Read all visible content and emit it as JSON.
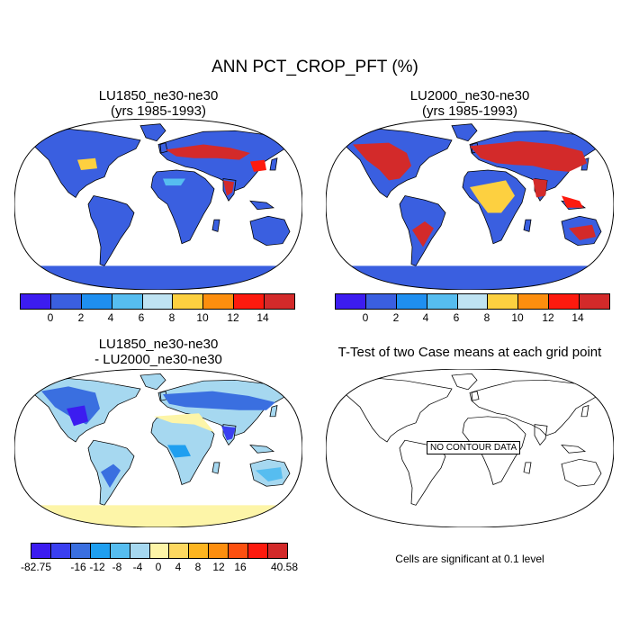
{
  "title": "ANN PCT_CROP_PFT (%)",
  "panels": {
    "top_left": {
      "title": "LU1850_ne30-ne30",
      "subtitle": "(yrs 1985-1993)"
    },
    "top_right": {
      "title": "LU2000_ne30-ne30",
      "subtitle": "(yrs 1985-1993)"
    },
    "bottom_left": {
      "title": "LU1850_ne30-ne30",
      "subtitle": "- LU2000_ne30-ne30"
    },
    "bottom_right": {
      "title": "T-Test of two Case means at each grid point",
      "no_data_label": "NO CONTOUR DATA",
      "note": "Cells are significant at 0.1 level"
    }
  },
  "colorbars": {
    "top": {
      "colors": [
        "#3c1cf0",
        "#3a5fe0",
        "#1f8ff0",
        "#56bdf0",
        "#bfe3f2",
        "#fdd040",
        "#fd8e0e",
        "#fd1a0e",
        "#d32a2a"
      ],
      "labels": [
        "0",
        "2",
        "4",
        "6",
        "8",
        "10",
        "12",
        "14"
      ]
    },
    "diff": {
      "colors": [
        "#3c1cf0",
        "#3a3ff0",
        "#3a6fe0",
        "#1f9ff0",
        "#56bdf0",
        "#a6d8f0",
        "#fdf5a8",
        "#fdd860",
        "#fdb520",
        "#fd8e0e",
        "#fd5010",
        "#fd1a0e",
        "#d32a2a"
      ],
      "labels": [
        "-82.75",
        "-16",
        "-12",
        "-8",
        "-4",
        "0",
        "4",
        "8",
        "12",
        "16",
        "40.58"
      ]
    }
  }
}
